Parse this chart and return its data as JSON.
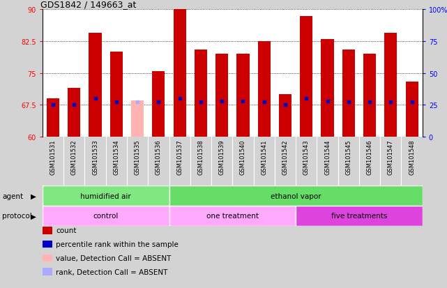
{
  "title": "GDS1842 / 149663_at",
  "samples": [
    "GSM101531",
    "GSM101532",
    "GSM101533",
    "GSM101534",
    "GSM101535",
    "GSM101536",
    "GSM101537",
    "GSM101538",
    "GSM101539",
    "GSM101540",
    "GSM101541",
    "GSM101542",
    "GSM101543",
    "GSM101544",
    "GSM101545",
    "GSM101546",
    "GSM101547",
    "GSM101548"
  ],
  "bar_values": [
    69.0,
    71.5,
    84.5,
    80.0,
    68.5,
    75.5,
    90.0,
    80.5,
    79.5,
    79.5,
    82.5,
    70.0,
    88.5,
    83.0,
    80.5,
    79.5,
    84.5,
    73.0
  ],
  "percentile_ranks": [
    25,
    25,
    30,
    27,
    27,
    27,
    30,
    27,
    28,
    28,
    27,
    25,
    30,
    28,
    27,
    27,
    27,
    27
  ],
  "absent_call": [
    false,
    false,
    false,
    false,
    true,
    false,
    false,
    false,
    false,
    false,
    false,
    false,
    false,
    false,
    false,
    false,
    false,
    false
  ],
  "absent_rank": [
    false,
    false,
    false,
    false,
    true,
    false,
    false,
    false,
    false,
    false,
    false,
    false,
    false,
    false,
    false,
    false,
    false,
    false
  ],
  "ylim_left": [
    60,
    90
  ],
  "ylim_right": [
    0,
    100
  ],
  "yticks_left": [
    60,
    67.5,
    75,
    82.5,
    90
  ],
  "yticks_right": [
    0,
    25,
    50,
    75,
    100
  ],
  "bar_color": "#cc0000",
  "absent_bar_color": "#ffb3b3",
  "blue_marker_color": "#0000cc",
  "absent_marker_color": "#aaaaff",
  "grid_color": "#000000",
  "agent_groups": [
    {
      "label": "humidified air",
      "start": 0,
      "end": 6,
      "color": "#80e880"
    },
    {
      "label": "ethanol vapor",
      "start": 6,
      "end": 18,
      "color": "#66dd66"
    }
  ],
  "protocol_groups": [
    {
      "label": "control",
      "start": 0,
      "end": 6,
      "color": "#ffaaff"
    },
    {
      "label": "one treatment",
      "start": 6,
      "end": 12,
      "color": "#ffaaff"
    },
    {
      "label": "five treatments",
      "start": 12,
      "end": 18,
      "color": "#dd44dd"
    }
  ],
  "background_color": "#d3d3d3",
  "plot_bg_color": "#ffffff",
  "xticklabel_bg": "#c0c0c0",
  "legend_items": [
    {
      "label": "count",
      "color": "#cc0000"
    },
    {
      "label": "percentile rank within the sample",
      "color": "#0000cc"
    },
    {
      "label": "value, Detection Call = ABSENT",
      "color": "#ffb3b3"
    },
    {
      "label": "rank, Detection Call = ABSENT",
      "color": "#aaaaff"
    }
  ]
}
